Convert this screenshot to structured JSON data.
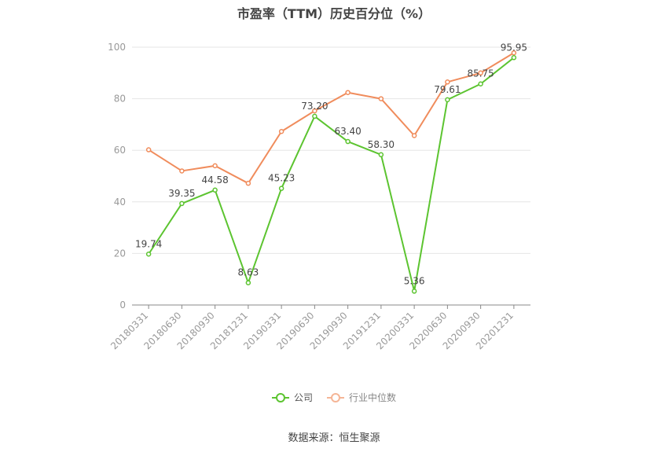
{
  "chart_data": {
    "type": "line",
    "title": "市盈率（TTM）历史百分位（%）",
    "categories": [
      "20180331",
      "20180630",
      "20180930",
      "20181231",
      "20190331",
      "20190630",
      "20190930",
      "20191231",
      "20200331",
      "20200630",
      "20200930",
      "20201231"
    ],
    "ylim": [
      0,
      100
    ],
    "yticks": [
      0,
      20,
      40,
      60,
      80,
      100
    ],
    "grid": true,
    "legend_position": "bottom",
    "series": [
      {
        "name": "公司",
        "color": "#5cc430",
        "values": [
          19.74,
          39.35,
          44.58,
          8.63,
          45.23,
          73.2,
          63.4,
          58.3,
          5.36,
          79.61,
          85.75,
          95.95
        ],
        "labels": [
          "19.74",
          "39.35",
          "44.58",
          "8.63",
          "45.23",
          "73.20",
          "63.40",
          "58.30",
          "5.36",
          "79.61",
          "85.75",
          "95.95"
        ]
      },
      {
        "name": "行业中位数",
        "color": "#f08c5c",
        "values": [
          60.2,
          52.0,
          54.0,
          47.2,
          67.3,
          75.3,
          82.4,
          80.0,
          65.7,
          86.5,
          90.0,
          97.8
        ]
      }
    ]
  },
  "source": "数据来源：恒生聚源"
}
